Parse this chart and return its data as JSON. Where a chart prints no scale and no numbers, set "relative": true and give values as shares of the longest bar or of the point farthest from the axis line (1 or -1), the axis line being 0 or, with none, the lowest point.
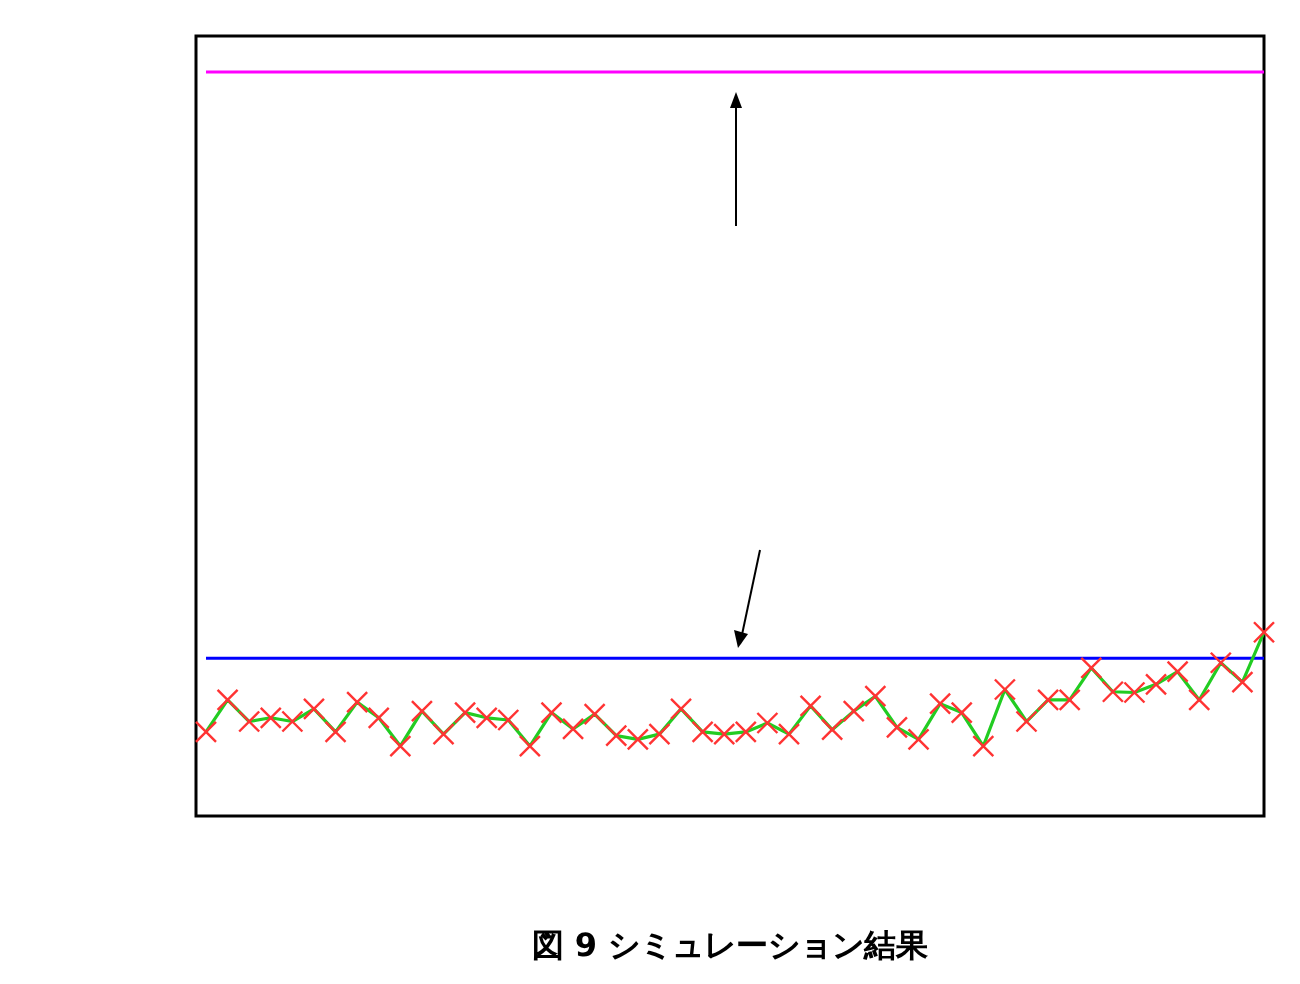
{
  "chart_data": {
    "type": "line",
    "relative": true,
    "title": "図 9 シミュレーション結果",
    "categories": [
      null,
      null,
      null,
      null,
      null,
      null,
      null,
      null,
      null,
      null,
      null,
      null,
      null,
      null,
      null,
      null,
      null,
      null,
      null,
      null,
      null,
      null,
      null,
      null,
      null,
      null,
      null,
      null,
      null,
      null,
      null,
      null,
      null,
      null,
      null,
      null,
      null,
      null,
      null,
      null,
      null,
      null,
      null,
      null,
      null,
      null,
      null,
      null,
      null,
      null
    ],
    "series": [
      {
        "color": "#ff00ff",
        "marker": "none",
        "values": [
          1,
          1,
          1,
          1,
          1,
          1,
          1,
          1,
          1,
          1,
          1,
          1,
          1,
          1,
          1,
          1,
          1,
          1,
          1,
          1,
          1,
          1,
          1,
          1,
          1,
          1,
          1,
          1,
          1,
          1,
          1,
          1,
          1,
          1,
          1,
          1,
          1,
          1,
          1,
          1,
          1,
          1,
          1,
          1,
          1,
          1,
          1,
          1,
          1,
          1
        ]
      },
      {
        "color": "#0000ff",
        "marker": "none",
        "values": [
          0.212,
          0.212,
          0.212,
          0.212,
          0.212,
          0.212,
          0.212,
          0.212,
          0.212,
          0.212,
          0.212,
          0.212,
          0.212,
          0.212,
          0.212,
          0.212,
          0.212,
          0.212,
          0.212,
          0.212,
          0.212,
          0.212,
          0.212,
          0.212,
          0.212,
          0.212,
          0.212,
          0.212,
          0.212,
          0.212,
          0.212,
          0.212,
          0.212,
          0.212,
          0.212,
          0.212,
          0.212,
          0.212,
          0.212,
          0.212,
          0.212,
          0.212,
          0.212,
          0.212,
          0.212,
          0.212,
          0.212,
          0.212,
          0.212,
          0.212
        ]
      },
      {
        "color": "#22cc22",
        "marker": "cross",
        "values": [
          0.113,
          0.156,
          0.127,
          0.132,
          0.127,
          0.144,
          0.113,
          0.153,
          0.132,
          0.094,
          0.141,
          0.11,
          0.139,
          0.132,
          0.129,
          0.094,
          0.139,
          0.117,
          0.137,
          0.108,
          0.103,
          0.11,
          0.144,
          0.113,
          0.11,
          0.113,
          0.125,
          0.11,
          0.148,
          0.116,
          0.141,
          0.161,
          0.119,
          0.103,
          0.151,
          0.139,
          0.094,
          0.17,
          0.127,
          0.156,
          0.156,
          0.199,
          0.167,
          0.166,
          0.177,
          0.194,
          0.156,
          0.206,
          0.18,
          0.247
        ],
        "colors": [
          "#ff3333",
          "#ff3333",
          "#ff3333",
          "#ff3333",
          "#ff3333",
          "#ff3333",
          "#ff3333",
          "#ff3333",
          "#ff3333",
          "#ff3333",
          "#ff3333",
          "#ff3333",
          "#ff3333",
          "#ff3333",
          "#ff3333",
          "#ff3333",
          "#ff3333",
          "#ff3333",
          "#ff3333",
          "#ff3333",
          "#ff3333",
          "#ff3333",
          "#ff3333",
          "#ff3333",
          "#ff3333",
          "#ff3333",
          "#ff3333",
          "#ff3333",
          "#ff3333",
          "#ff3333",
          "#ff3333",
          "#ff3333",
          "#ff3333",
          "#ff3333",
          "#ff3333",
          "#ff3333",
          "#ff3333",
          "#ff3333",
          "#ff3333",
          "#ff3333",
          "#ff3333",
          "#ff3333",
          "#ff3333",
          "#ff3333",
          "#ff3333",
          "#ff3333",
          "#ff3333",
          "#ff3333",
          "#ff3333",
          "#ff3333"
        ]
      }
    ],
    "grid": false,
    "legend": false
  }
}
